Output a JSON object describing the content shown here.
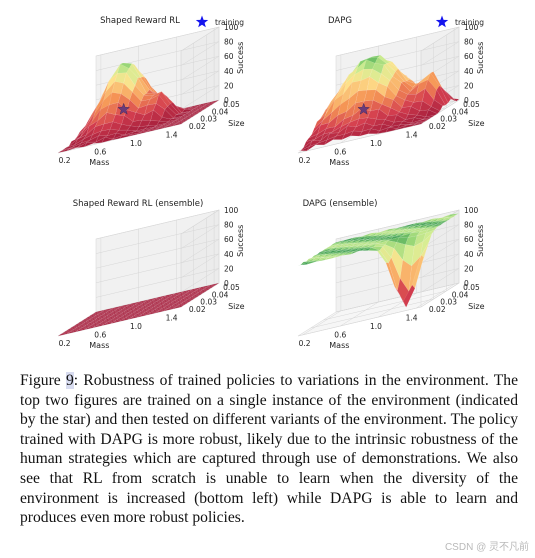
{
  "legend_label": "training",
  "panels": [
    {
      "title": "Shaped Reward RL",
      "show_legend": true,
      "star": true,
      "surface": "shaped"
    },
    {
      "title": "DAPG",
      "show_legend": true,
      "star": true,
      "surface": "dapg"
    },
    {
      "title": "Shaped Reward RL (ensemble)",
      "show_legend": false,
      "star": false,
      "surface": "flat"
    },
    {
      "title": "DAPG (ensemble)",
      "show_legend": false,
      "star": false,
      "surface": "dapg_ens"
    }
  ],
  "axes": {
    "mass_label": "Mass",
    "mass_ticks": [
      "0.2",
      "0.6",
      "1.0",
      "1.4"
    ],
    "size_label": "Size",
    "size_ticks": [
      "0.02",
      "0.03",
      "0.04",
      "0.05"
    ],
    "success_label": "Success",
    "success_ticks": [
      "0",
      "20",
      "40",
      "60",
      "80",
      "100"
    ]
  },
  "chart_data": [
    {
      "type": "surface3d",
      "title": "Shaped Reward RL",
      "xlabel": "Mass",
      "ylabel": "Size",
      "zlabel": "Success",
      "xlim": [
        0.2,
        1.4
      ],
      "ylim": [
        0.02,
        0.05
      ],
      "zlim": [
        0,
        100
      ],
      "legend": [
        "training"
      ],
      "peak_success": 90,
      "training_point": {
        "mass": 0.6,
        "size": 0.04,
        "success": 25
      }
    },
    {
      "type": "surface3d",
      "title": "DAPG",
      "xlabel": "Mass",
      "ylabel": "Size",
      "zlabel": "Success",
      "xlim": [
        0.2,
        1.4
      ],
      "ylim": [
        0.02,
        0.05
      ],
      "zlim": [
        0,
        100
      ],
      "legend": [
        "training"
      ],
      "peak_success": 95,
      "training_point": {
        "mass": 0.6,
        "size": 0.04,
        "success": 25
      }
    },
    {
      "type": "surface3d",
      "title": "Shaped Reward RL (ensemble)",
      "xlabel": "Mass",
      "ylabel": "Size",
      "zlabel": "Success",
      "xlim": [
        0.2,
        1.4
      ],
      "ylim": [
        0.02,
        0.05
      ],
      "zlim": [
        0,
        100
      ],
      "peak_success": 0
    },
    {
      "type": "surface3d",
      "title": "DAPG (ensemble)",
      "xlabel": "Mass",
      "ylabel": "Size",
      "zlabel": "Success",
      "xlim": [
        0.2,
        1.4
      ],
      "ylim": [
        0.02,
        0.05
      ],
      "zlim": [
        0,
        100
      ],
      "peak_success": 100
    }
  ],
  "caption": {
    "label": "Figure ",
    "number": "9",
    "text": ": Robustness of trained policies to variations in the environment. The top two figures are trained on a single instance of the environment (indicated by the star) and then tested on different variants of the environment. The policy trained with DAPG is more robust, likely due to the intrinsic robustness of the human strategies which are captured through use of demonstrations. We also see that RL from scratch is unable to learn when the diversity of the environment is increased (bottom left) while DAPG is able to learn and produces even more robust policies."
  },
  "watermark": "CSDN @ 灵不凡前"
}
